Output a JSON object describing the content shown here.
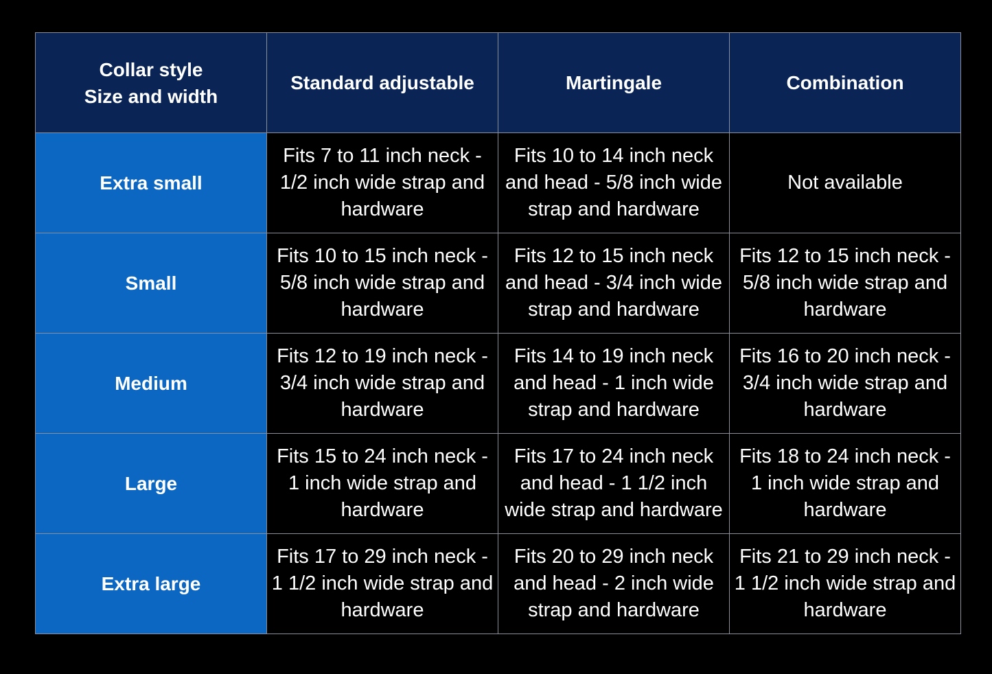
{
  "table": {
    "header": [
      "Collar style\nSize and width",
      "Standard adjustable",
      "Martingale",
      "Combination"
    ],
    "rows": [
      [
        "Extra small",
        "Fits 7 to 11 inch neck - 1/2 inch wide strap and hardware",
        "Fits 10 to 14 inch neck and head - 5/8 inch wide strap and hardware",
        "Not available"
      ],
      [
        "Small",
        "Fits 10 to 15 inch neck - 5/8 inch wide strap and hardware",
        "Fits 12 to 15 inch neck and head - 3/4 inch wide strap and hardware",
        "Fits 12 to 15 inch neck - 5/8 inch wide strap and hardware"
      ],
      [
        "Medium",
        "Fits 12 to 19 inch neck - 3/4 inch wide strap and hardware",
        "Fits 14 to 19 inch neck and head - 1 inch wide strap and hardware",
        "Fits 16 to 20 inch neck - 3/4 inch wide strap and hardware"
      ],
      [
        "Large",
        "Fits 15 to 24 inch neck - 1 inch wide strap and hardware",
        "Fits 17 to 24 inch neck and head - 1 1/2 inch wide strap and hardware",
        "Fits 18 to 24 inch neck - 1 inch wide strap and hardware"
      ],
      [
        "Extra large",
        "Fits 17 to 29 inch neck - 1 1/2 inch wide strap and hardware",
        "Fits 20 to 29 inch neck and head - 2 inch wide strap and hardware",
        "Fits 21 to 29 inch neck - 1 1/2 inch wide strap and hardware"
      ]
    ]
  }
}
